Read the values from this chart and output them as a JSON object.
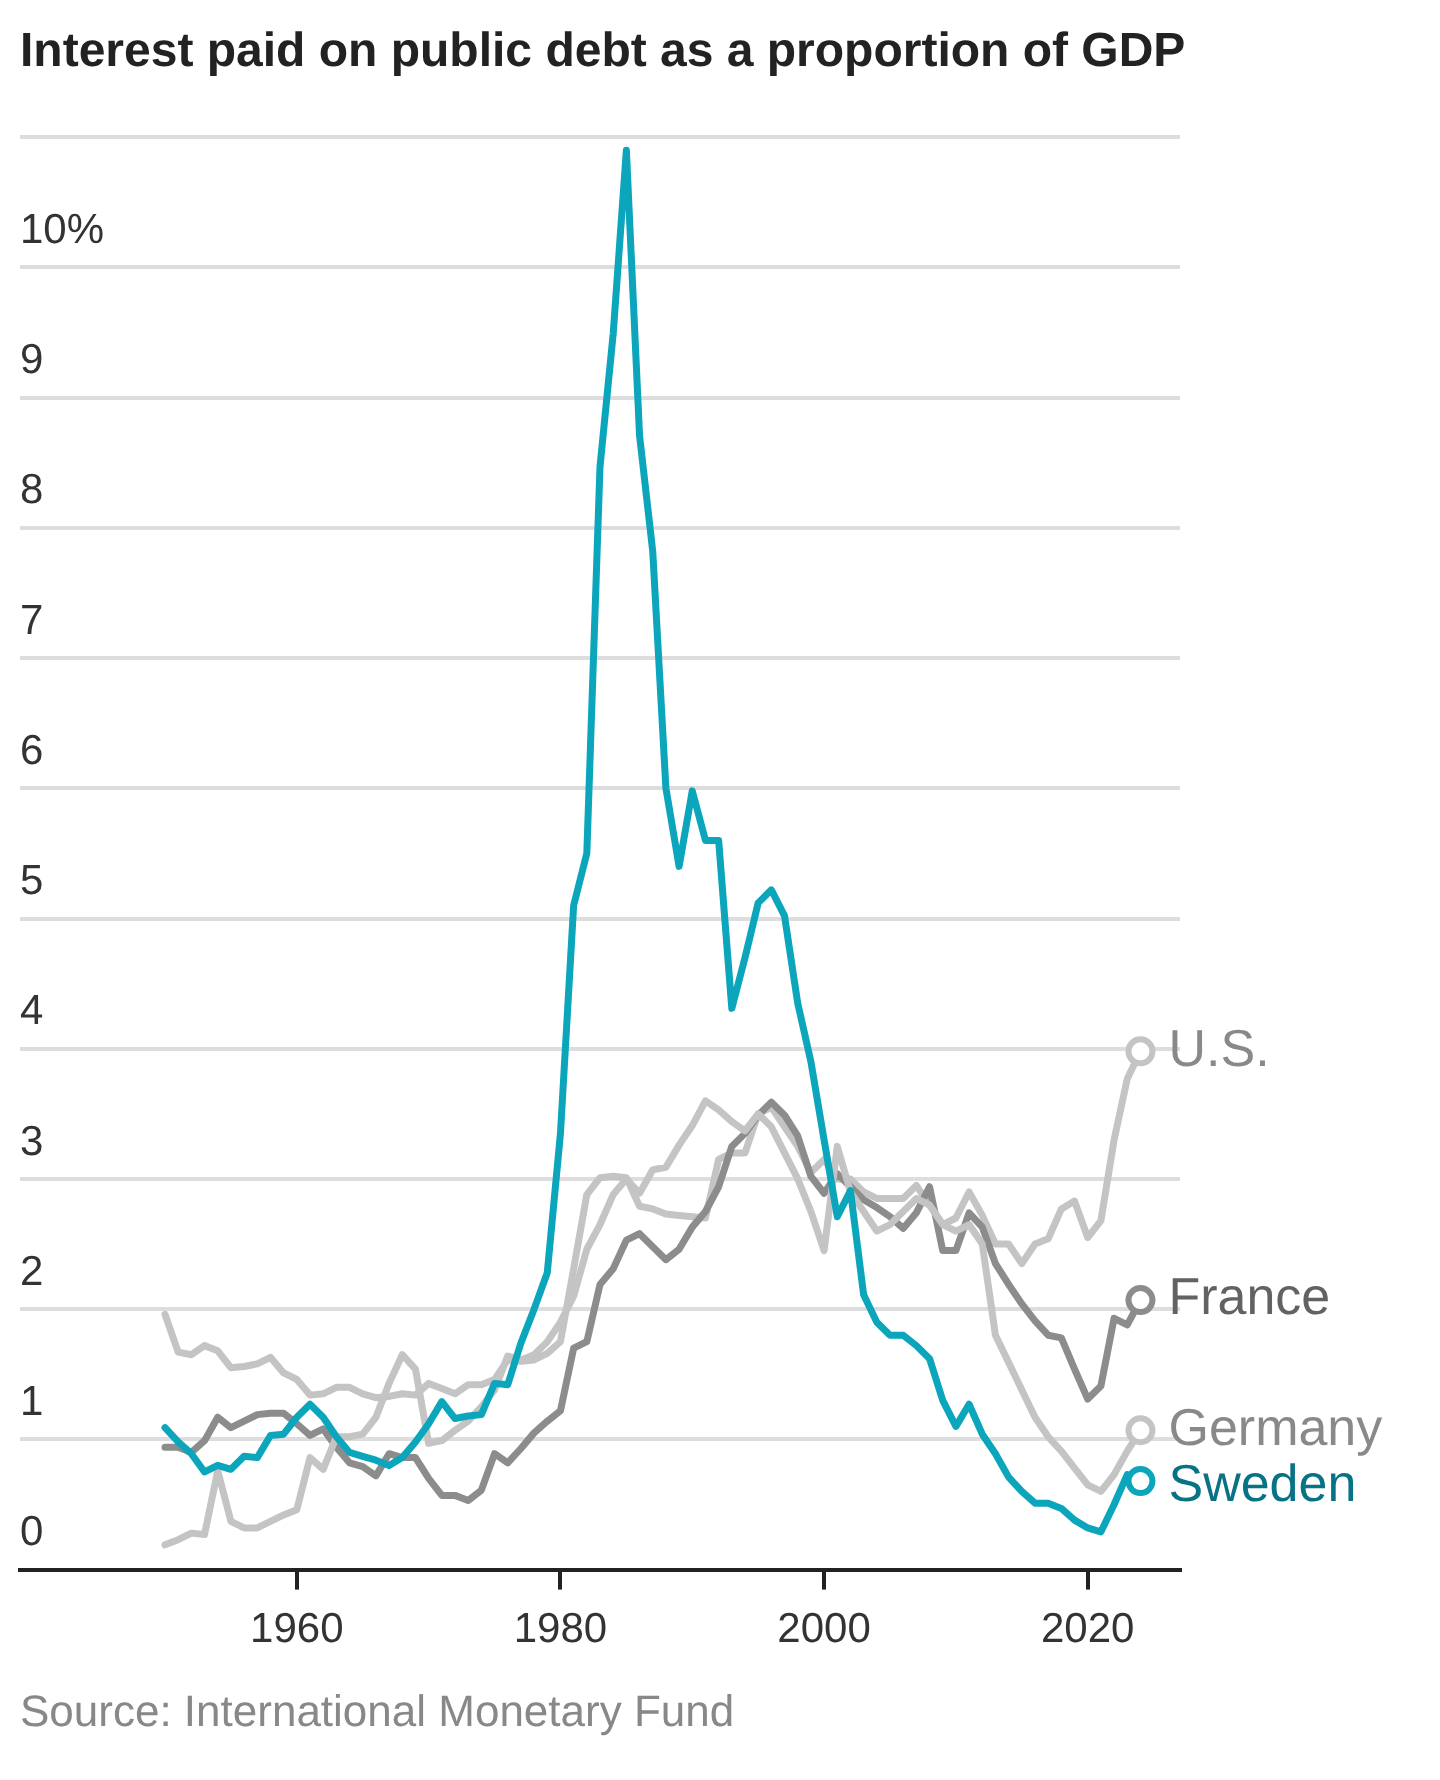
{
  "chart_data": {
    "type": "line",
    "title": "Interest paid on public debt as a proportion of GDP",
    "annotations": [
      "Source: International Monetary Fund"
    ],
    "x": [
      1950,
      1951,
      1952,
      1953,
      1954,
      1955,
      1956,
      1957,
      1958,
      1959,
      1960,
      1961,
      1962,
      1963,
      1964,
      1965,
      1966,
      1967,
      1968,
      1969,
      1970,
      1971,
      1972,
      1973,
      1974,
      1975,
      1976,
      1977,
      1978,
      1979,
      1980,
      1981,
      1982,
      1983,
      1984,
      1985,
      1986,
      1987,
      1988,
      1989,
      1990,
      1991,
      1992,
      1993,
      1994,
      1995,
      1996,
      1997,
      1998,
      1999,
      2000,
      2001,
      2002,
      2003,
      2004,
      2005,
      2006,
      2007,
      2008,
      2009,
      2010,
      2011,
      2012,
      2013,
      2014,
      2015,
      2016,
      2017,
      2018,
      2019,
      2020,
      2021,
      2022,
      2023,
      2024
    ],
    "series": [
      {
        "name": "U.S.",
        "color": "#c4c4c4",
        "values": [
          1.96,
          1.67,
          1.65,
          1.72,
          1.68,
          1.55,
          1.56,
          1.58,
          1.63,
          1.51,
          1.46,
          1.34,
          1.35,
          1.4,
          1.4,
          1.35,
          1.32,
          1.33,
          1.35,
          1.34,
          1.43,
          1.39,
          1.35,
          1.42,
          1.42,
          1.46,
          1.61,
          1.6,
          1.61,
          1.66,
          1.75,
          2.31,
          2.88,
          3.01,
          3.02,
          3.01,
          2.79,
          2.77,
          2.73,
          2.72,
          2.71,
          2.7,
          3.15,
          3.2,
          3.2,
          3.5,
          3.55,
          3.4,
          3.25,
          3.05,
          3.15,
          3.0,
          3.0,
          2.9,
          2.85,
          2.85,
          2.85,
          2.95,
          2.8,
          2.65,
          2.7,
          2.9,
          2.72,
          2.5,
          2.5,
          2.35,
          2.5,
          2.54,
          2.77,
          2.83,
          2.55,
          2.68,
          3.3,
          3.77,
          3.98
        ]
      },
      {
        "name": "France",
        "color": "#8c8c8c",
        "values": [
          0.94,
          0.94,
          0.9,
          0.99,
          1.17,
          1.09,
          1.14,
          1.19,
          1.2,
          1.2,
          1.12,
          1.03,
          1.08,
          0.94,
          0.82,
          0.79,
          0.72,
          0.89,
          0.86,
          0.86,
          0.7,
          0.57,
          0.57,
          0.53,
          0.61,
          0.89,
          0.82,
          0.93,
          1.05,
          1.14,
          1.22,
          1.7,
          1.75,
          2.19,
          2.31,
          2.53,
          2.58,
          2.48,
          2.38,
          2.46,
          2.63,
          2.75,
          2.94,
          3.25,
          3.35,
          3.49,
          3.59,
          3.49,
          3.33,
          3.02,
          2.89,
          3.04,
          2.94,
          2.84,
          2.78,
          2.71,
          2.62,
          2.74,
          2.94,
          2.45,
          2.45,
          2.74,
          2.63,
          2.35,
          2.19,
          2.04,
          1.91,
          1.8,
          1.78,
          1.54,
          1.31,
          1.41,
          1.93,
          1.88,
          2.07
        ]
      },
      {
        "name": "Germany",
        "color": "#c4c4c4",
        "values": [
          0.19,
          0.23,
          0.28,
          0.27,
          0.76,
          0.37,
          0.32,
          0.32,
          0.37,
          0.42,
          0.46,
          0.86,
          0.77,
          1.02,
          1.02,
          1.04,
          1.17,
          1.43,
          1.65,
          1.54,
          0.97,
          0.99,
          1.07,
          1.14,
          1.25,
          1.38,
          1.64,
          1.61,
          1.65,
          1.75,
          1.9,
          2.1,
          2.46,
          2.65,
          2.88,
          3.0,
          2.89,
          3.07,
          3.09,
          3.26,
          3.41,
          3.6,
          3.53,
          3.44,
          3.37,
          3.5,
          3.4,
          3.2,
          3.0,
          2.75,
          2.45,
          3.25,
          2.9,
          2.75,
          2.6,
          2.65,
          2.75,
          2.85,
          2.8,
          2.65,
          2.6,
          2.65,
          2.5,
          1.8,
          1.59,
          1.38,
          1.17,
          1.02,
          0.91,
          0.78,
          0.65,
          0.6,
          0.73,
          0.91,
          1.07
        ]
      },
      {
        "name": "Sweden",
        "color": "#0ba5bc",
        "values": [
          1.09,
          0.98,
          0.89,
          0.75,
          0.8,
          0.77,
          0.87,
          0.86,
          1.03,
          1.04,
          1.17,
          1.27,
          1.17,
          1.02,
          0.9,
          0.87,
          0.84,
          0.8,
          0.86,
          0.98,
          1.12,
          1.29,
          1.16,
          1.18,
          1.19,
          1.43,
          1.42,
          1.74,
          2.0,
          2.28,
          3.35,
          5.1,
          5.5,
          8.47,
          9.49,
          10.9,
          8.71,
          7.82,
          6.0,
          5.4,
          5.98,
          5.6,
          5.6,
          4.31,
          4.7,
          5.12,
          5.22,
          5.02,
          4.35,
          3.9,
          3.3,
          2.71,
          2.91,
          2.11,
          1.9,
          1.8,
          1.8,
          1.72,
          1.62,
          1.3,
          1.1,
          1.27,
          1.04,
          0.89,
          0.71,
          0.6,
          0.51,
          0.51,
          0.47,
          0.38,
          0.32,
          0.29,
          0.5,
          0.73,
          0.68
        ]
      }
    ],
    "xlim": [
      1939,
      2027
    ],
    "xticks": [
      1960,
      1980,
      2000,
      2020
    ],
    "ylim": [
      0,
      11
    ],
    "yticks": [
      0,
      1,
      2,
      3,
      4,
      5,
      6,
      7,
      8,
      9,
      {
        "value": 10,
        "label": "10%"
      },
      {
        "value": 11,
        "label": null
      }
    ],
    "grid": "y",
    "legend": false,
    "line_style": "solid"
  }
}
